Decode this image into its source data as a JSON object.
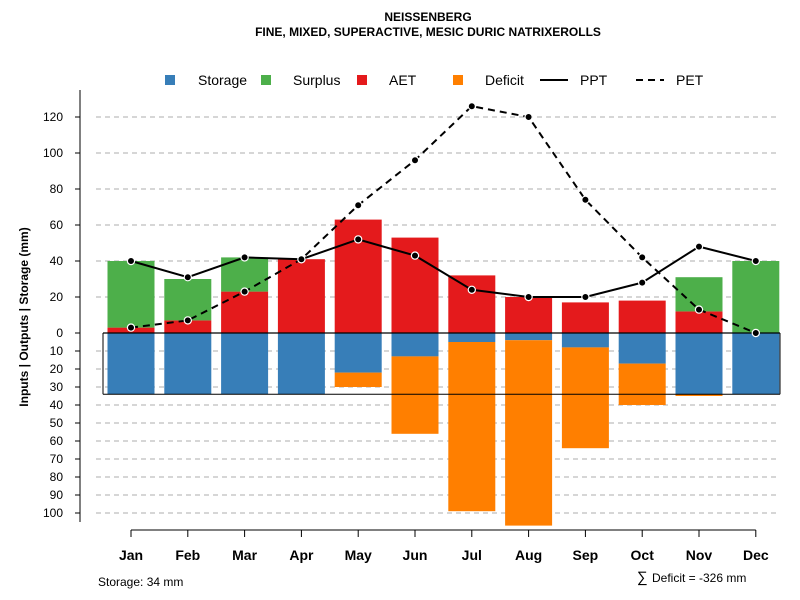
{
  "chart_data": {
    "type": "bar",
    "title": "NEISSENBERG",
    "subtitle": "FINE, MIXED, SUPERACTIVE, MESIC DURIC NATRIXEROLLS",
    "ylabel": "Inputs | Outputs | Storage    (mm)",
    "categories": [
      "Jan",
      "Feb",
      "Mar",
      "Apr",
      "May",
      "Jun",
      "Jul",
      "Aug",
      "Sep",
      "Oct",
      "Nov",
      "Dec"
    ],
    "ylim_upper": [
      0,
      130
    ],
    "ylim_lower": [
      0,
      105
    ],
    "upper_ticks": [
      "0",
      "20",
      "40",
      "60",
      "80",
      "100",
      "120"
    ],
    "upper_tick_values": [
      0,
      20,
      40,
      60,
      80,
      100,
      120
    ],
    "lower_ticks": [
      "10",
      "20",
      "30",
      "40",
      "50",
      "60",
      "70",
      "80",
      "90",
      "100"
    ],
    "lower_tick_values": [
      10,
      20,
      30,
      40,
      50,
      60,
      70,
      80,
      90,
      100
    ],
    "series": [
      {
        "name": "Storage",
        "key": "storage",
        "color": "#377EB8",
        "values": [
          34,
          34,
          34,
          34,
          22,
          13,
          5,
          4,
          8,
          17,
          34,
          34
        ]
      },
      {
        "name": "Surplus",
        "key": "surplus",
        "color": "#4DAF4A",
        "values": [
          37,
          23,
          19,
          0,
          0,
          0,
          0,
          0,
          0,
          0,
          19,
          40
        ]
      },
      {
        "name": "AET",
        "key": "aet",
        "color": "#E41A1C",
        "values": [
          3,
          7,
          23,
          41,
          63,
          53,
          32,
          20,
          17,
          18,
          12,
          0
        ]
      },
      {
        "name": "Deficit",
        "key": "deficit",
        "color": "#FF7F00",
        "values": [
          0,
          0,
          0,
          0,
          8,
          43,
          94,
          103,
          56,
          23,
          1,
          0
        ]
      },
      {
        "name": "PPT",
        "key": "ppt",
        "color": "#000000",
        "style": "solid",
        "values": [
          40,
          31,
          42,
          41,
          52,
          43,
          24,
          20,
          20,
          28,
          48,
          40
        ]
      },
      {
        "name": "PET",
        "key": "pet",
        "color": "#000000",
        "style": "dashed",
        "values": [
          3,
          7,
          23,
          41,
          71,
          96,
          126,
          120,
          74,
          42,
          13,
          0
        ]
      }
    ],
    "legend_position": "top",
    "footer_left": "Storage: 34 mm",
    "footer_right_symbol": "∑",
    "footer_right": "Deficit = -326 mm",
    "grid": true
  }
}
